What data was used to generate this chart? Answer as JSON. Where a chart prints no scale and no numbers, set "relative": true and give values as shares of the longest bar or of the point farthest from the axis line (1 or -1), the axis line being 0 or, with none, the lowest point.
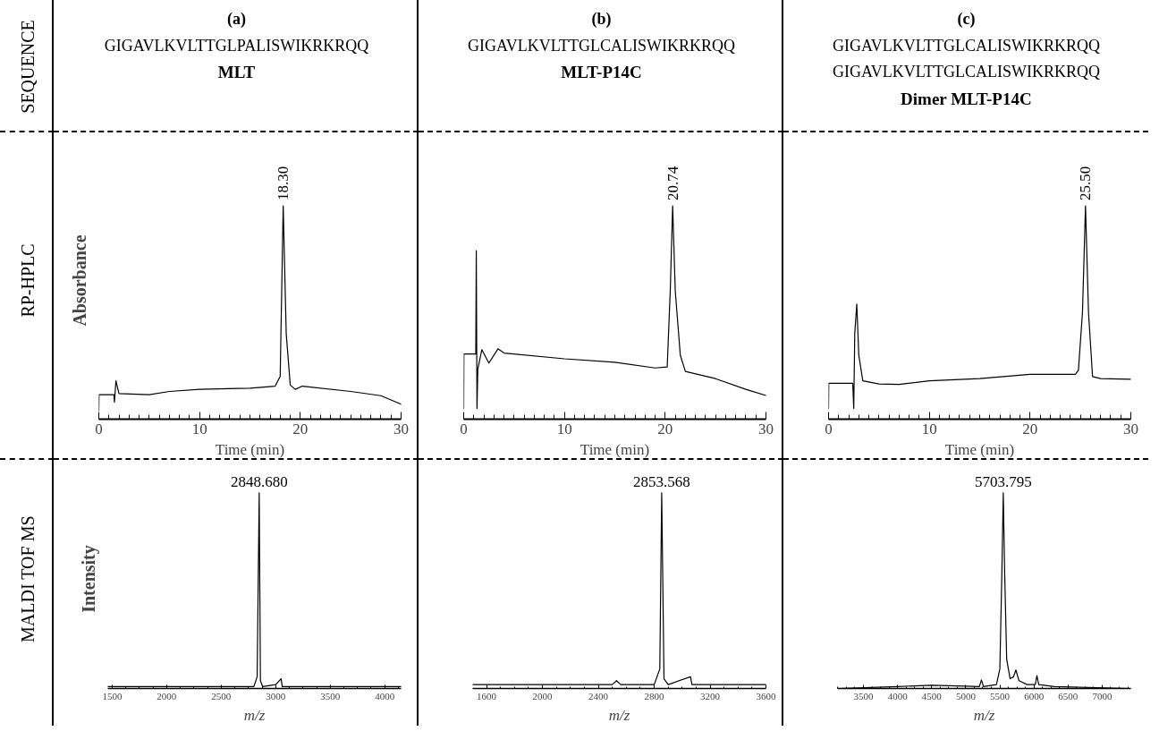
{
  "chart_data": [
    {
      "type": "other",
      "title": "SEQUENCE"
    },
    {
      "type": "other",
      "title": "(a)",
      "annotations": [
        "GIGAVLKVLTTGLPALISWIKRKRQQ",
        "MLT"
      ]
    },
    {
      "type": "other",
      "title": "(b)",
      "annotations": [
        "GIGAVLKVLTTGLCALISWIKRKRQQ",
        "MLT-P14C"
      ]
    },
    {
      "type": "other",
      "title": "(c)",
      "annotations": [
        "GIGAVLKVLTTGLCALISWIKRKRQQ",
        "GIGAVLKVLTTGLCALISWIKRKRQQ",
        "Dimer MLT-P14C"
      ]
    },
    {
      "type": "other",
      "title": "RP-HPLC"
    },
    {
      "type": "line",
      "relative": true,
      "xlabel": "Time (min)",
      "ylabel": "Absorbance",
      "xlim": [
        0,
        30
      ],
      "xticks": [
        0,
        10,
        20,
        30
      ],
      "color": "#000000",
      "x": [
        0,
        0.02,
        1.5,
        1.55,
        1.7,
        2.0,
        5,
        7,
        10,
        15,
        17.5,
        18.0,
        18.3,
        18.6,
        19,
        19.5,
        20.2,
        25,
        28,
        30
      ],
      "values": [
        0.04,
        0.115,
        0.115,
        0.08,
        0.18,
        0.12,
        0.115,
        0.13,
        0.14,
        0.145,
        0.155,
        0.2,
        1.0,
        0.4,
        0.16,
        0.14,
        0.155,
        0.13,
        0.11,
        0.07
      ],
      "annotations": [
        {
          "text": "18.30",
          "x": 18.3,
          "y": 1.0
        }
      ]
    },
    {
      "type": "line",
      "relative": true,
      "xlabel": "Time (min)",
      "xlim": [
        0,
        30
      ],
      "xticks": [
        0,
        10,
        20,
        30
      ],
      "color": "#000000",
      "x": [
        0,
        0.02,
        1.2,
        1.25,
        1.32,
        1.4,
        1.8,
        2.5,
        3.4,
        4,
        10,
        15,
        19,
        20.2,
        20.5,
        20.74,
        21.0,
        21.5,
        22,
        25,
        28,
        30
      ],
      "values": [
        0.05,
        0.306,
        0.306,
        0.79,
        0.05,
        0.234,
        0.326,
        0.263,
        0.33,
        0.31,
        0.283,
        0.267,
        0.24,
        0.245,
        0.6,
        1.0,
        0.6,
        0.3,
        0.224,
        0.19,
        0.14,
        0.111
      ],
      "annotations": [
        {
          "text": "20.74",
          "x": 20.74,
          "y": 1.0
        }
      ]
    },
    {
      "type": "line",
      "relative": true,
      "xlabel": "Time (min)",
      "xlim": [
        0,
        30
      ],
      "xticks": [
        0,
        10,
        20,
        30
      ],
      "color": "#000000",
      "x": [
        0,
        0.02,
        2.4,
        2.5,
        2.6,
        2.8,
        3.0,
        3.4,
        5,
        7,
        10,
        15,
        20,
        24.5,
        24.8,
        25.2,
        25.5,
        25.8,
        26.2,
        27,
        30
      ],
      "values": [
        0.05,
        0.168,
        0.168,
        0.05,
        0.4,
        0.54,
        0.3,
        0.18,
        0.165,
        0.163,
        0.18,
        0.19,
        0.21,
        0.21,
        0.23,
        0.5,
        1.0,
        0.5,
        0.2,
        0.19,
        0.187
      ],
      "annotations": [
        {
          "text": "25.50",
          "x": 25.5,
          "y": 1.0
        }
      ]
    },
    {
      "type": "other",
      "title": "MALDI TOF MS"
    },
    {
      "type": "line",
      "relative": true,
      "xlabel": "m/z",
      "ylabel": "Intensity",
      "xlim": [
        1460,
        4150
      ],
      "xticks": [
        1500,
        2000,
        2500,
        3000,
        3500,
        4000
      ],
      "color": "#000000",
      "x": [
        1460,
        2800,
        2830,
        2848.68,
        2860,
        2880,
        3000,
        3050,
        3060,
        4150
      ],
      "values": [
        0.01,
        0.01,
        0.06,
        1.0,
        0.04,
        0.01,
        0.02,
        0.05,
        0.01,
        0.01
      ],
      "annotations": [
        {
          "text": "2848.680",
          "x": 2848.68,
          "y": 1.0
        }
      ]
    },
    {
      "type": "line",
      "relative": true,
      "xlabel": "m/z",
      "xlim": [
        1500,
        3600
      ],
      "xticks": [
        1600,
        2000,
        2400,
        2800,
        3200,
        3600
      ],
      "color": "#000000",
      "x": [
        1500,
        2500,
        2530,
        2560,
        2800,
        2840,
        2853.568,
        2870,
        2900,
        3060,
        3070,
        3600
      ],
      "values": [
        0.02,
        0.02,
        0.04,
        0.02,
        0.02,
        0.1,
        1.0,
        0.05,
        0.02,
        0.06,
        0.02,
        0.02
      ],
      "annotations": [
        {
          "text": "2853.568",
          "x": 2853.568,
          "y": 1.0
        }
      ]
    },
    {
      "type": "line",
      "relative": true,
      "xlabel": "m/z",
      "xlim": [
        3120,
        7420
      ],
      "xticks": [
        3500,
        4000,
        4500,
        5000,
        5500,
        6000,
        6500,
        7000
      ],
      "color": "#000000",
      "x": [
        3120,
        4000,
        4500,
        5000,
        5200,
        5230,
        5260,
        5450,
        5500,
        5530,
        5550,
        5570,
        5600,
        5650,
        5700,
        5735,
        5780,
        5900,
        6020,
        6043,
        6070,
        6300,
        7420
      ],
      "values": [
        0.0,
        0.01,
        0.017,
        0.012,
        0.01,
        0.044,
        0.01,
        0.02,
        0.1,
        0.6,
        1.0,
        0.6,
        0.15,
        0.05,
        0.06,
        0.095,
        0.04,
        0.02,
        0.02,
        0.066,
        0.02,
        0.01,
        0.0
      ],
      "annotations": [
        {
          "text": "5703.795",
          "x": 5550,
          "y": 1.0
        }
      ]
    }
  ]
}
